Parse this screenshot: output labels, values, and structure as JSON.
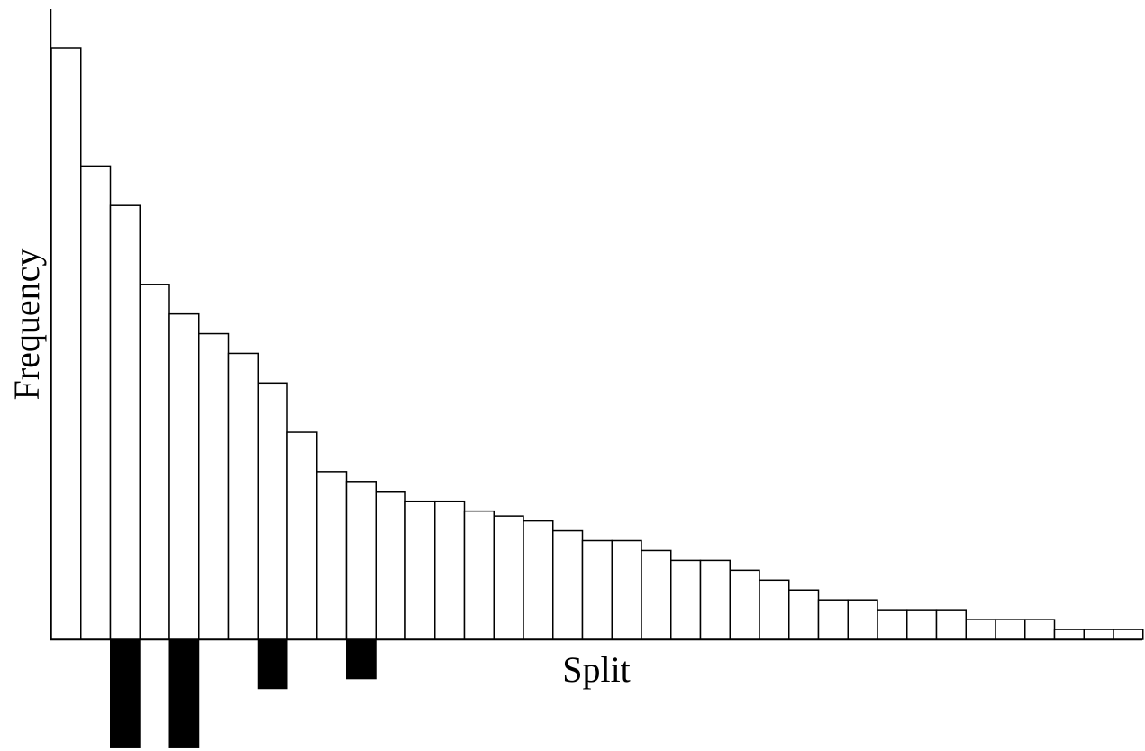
{
  "chart_data": {
    "type": "bar",
    "title": "",
    "xlabel": "Split",
    "ylabel": "Frequency",
    "grid": false,
    "legend": "none",
    "colors": {
      "upper_fill": "#ffffff",
      "outline": "#000000",
      "lower_fill": "#000000"
    },
    "series": [
      {
        "values": [
          60,
          48,
          44,
          36,
          33,
          31,
          29,
          26,
          21,
          17,
          16,
          15,
          14,
          14,
          13,
          12.5,
          12,
          11,
          10,
          10,
          9,
          8,
          8,
          7,
          6,
          5,
          4,
          4,
          3,
          3,
          3,
          2,
          2,
          2,
          1,
          1,
          1
        ]
      },
      {
        "values": [
          0,
          0,
          11,
          0,
          11,
          0,
          0,
          5,
          0,
          0,
          4,
          0,
          0,
          0,
          0,
          0,
          0,
          0,
          0,
          0,
          0,
          0,
          0,
          0,
          0,
          0,
          0,
          0,
          0,
          0,
          0,
          0,
          0,
          0,
          0,
          0,
          0
        ]
      }
    ]
  }
}
